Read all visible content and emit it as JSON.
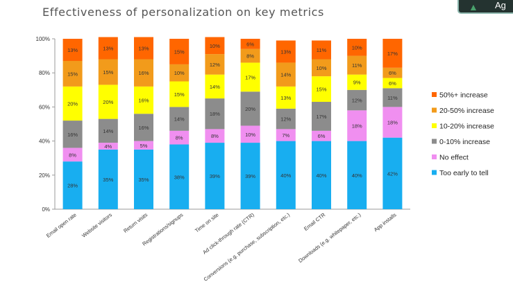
{
  "badge": {
    "text": "Ag"
  },
  "chart_data": {
    "type": "bar",
    "stacked": true,
    "title": "Effectiveness of personalization on key metrics",
    "xlabel": "",
    "ylabel": "",
    "ylim": [
      0,
      100
    ],
    "yticks": [
      "0%",
      "20%",
      "40%",
      "60%",
      "80%",
      "100%"
    ],
    "legend_position": "right",
    "categories": [
      "Email open rate",
      "Website visitors",
      "Return visits",
      "Registrations/signups",
      "Time on site",
      "Ad click-through rate (CTR)",
      "Conversions (e.g. purchase, subscription, etc.)",
      "Email CTR",
      "Downloads (e.g. whitepaper, etc.)",
      "App installs"
    ],
    "series": [
      {
        "name": "Too early to tell",
        "color": "#18aef0",
        "values": [
          28,
          35,
          35,
          38,
          39,
          39,
          40,
          40,
          40,
          42
        ]
      },
      {
        "name": "No effect",
        "color": "#f08ff0",
        "values": [
          8,
          4,
          5,
          8,
          8,
          10,
          7,
          6,
          18,
          18
        ]
      },
      {
        "name": "0-10% increase",
        "color": "#8c8c8c",
        "values": [
          16,
          14,
          16,
          14,
          18,
          20,
          12,
          17,
          12,
          11
        ]
      },
      {
        "name": "10-20% increase",
        "color": "#ffff00",
        "values": [
          20,
          20,
          16,
          15,
          14,
          17,
          13,
          15,
          9,
          6
        ]
      },
      {
        "name": "20-50% increase",
        "color": "#f29b1b",
        "values": [
          15,
          15,
          16,
          10,
          12,
          8,
          14,
          10,
          11,
          6
        ]
      },
      {
        "name": "50%+ increase",
        "color": "#ff6600",
        "values": [
          13,
          13,
          13,
          15,
          10,
          6,
          13,
          11,
          10,
          17
        ]
      }
    ]
  }
}
